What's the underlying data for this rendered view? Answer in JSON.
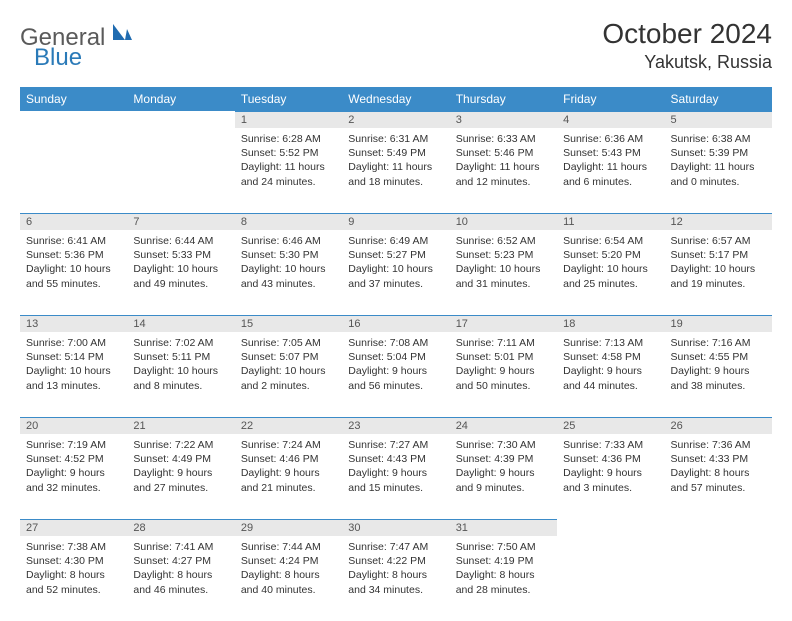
{
  "brand": {
    "text1": "General",
    "text2": "Blue"
  },
  "title": "October 2024",
  "subtitle": "Yakutsk, Russia",
  "colors": {
    "header_bg": "#3b8bc8",
    "header_text": "#ffffff",
    "daynum_bg": "#e8e8e8",
    "daynum_border": "#3b8bc8",
    "body_text": "#333333",
    "logo_gray": "#5a5a5a",
    "logo_blue": "#2a7ab8"
  },
  "typography": {
    "title_fontsize": 28,
    "subtitle_fontsize": 18,
    "dayheader_fontsize": 12,
    "cell_fontsize": 10.5
  },
  "dayHeaders": [
    "Sunday",
    "Monday",
    "Tuesday",
    "Wednesday",
    "Thursday",
    "Friday",
    "Saturday"
  ],
  "weeks": [
    [
      null,
      null,
      {
        "n": "1",
        "sunrise": "Sunrise: 6:28 AM",
        "sunset": "Sunset: 5:52 PM",
        "d1": "Daylight: 11 hours",
        "d2": "and 24 minutes."
      },
      {
        "n": "2",
        "sunrise": "Sunrise: 6:31 AM",
        "sunset": "Sunset: 5:49 PM",
        "d1": "Daylight: 11 hours",
        "d2": "and 18 minutes."
      },
      {
        "n": "3",
        "sunrise": "Sunrise: 6:33 AM",
        "sunset": "Sunset: 5:46 PM",
        "d1": "Daylight: 11 hours",
        "d2": "and 12 minutes."
      },
      {
        "n": "4",
        "sunrise": "Sunrise: 6:36 AM",
        "sunset": "Sunset: 5:43 PM",
        "d1": "Daylight: 11 hours",
        "d2": "and 6 minutes."
      },
      {
        "n": "5",
        "sunrise": "Sunrise: 6:38 AM",
        "sunset": "Sunset: 5:39 PM",
        "d1": "Daylight: 11 hours",
        "d2": "and 0 minutes."
      }
    ],
    [
      {
        "n": "6",
        "sunrise": "Sunrise: 6:41 AM",
        "sunset": "Sunset: 5:36 PM",
        "d1": "Daylight: 10 hours",
        "d2": "and 55 minutes."
      },
      {
        "n": "7",
        "sunrise": "Sunrise: 6:44 AM",
        "sunset": "Sunset: 5:33 PM",
        "d1": "Daylight: 10 hours",
        "d2": "and 49 minutes."
      },
      {
        "n": "8",
        "sunrise": "Sunrise: 6:46 AM",
        "sunset": "Sunset: 5:30 PM",
        "d1": "Daylight: 10 hours",
        "d2": "and 43 minutes."
      },
      {
        "n": "9",
        "sunrise": "Sunrise: 6:49 AM",
        "sunset": "Sunset: 5:27 PM",
        "d1": "Daylight: 10 hours",
        "d2": "and 37 minutes."
      },
      {
        "n": "10",
        "sunrise": "Sunrise: 6:52 AM",
        "sunset": "Sunset: 5:23 PM",
        "d1": "Daylight: 10 hours",
        "d2": "and 31 minutes."
      },
      {
        "n": "11",
        "sunrise": "Sunrise: 6:54 AM",
        "sunset": "Sunset: 5:20 PM",
        "d1": "Daylight: 10 hours",
        "d2": "and 25 minutes."
      },
      {
        "n": "12",
        "sunrise": "Sunrise: 6:57 AM",
        "sunset": "Sunset: 5:17 PM",
        "d1": "Daylight: 10 hours",
        "d2": "and 19 minutes."
      }
    ],
    [
      {
        "n": "13",
        "sunrise": "Sunrise: 7:00 AM",
        "sunset": "Sunset: 5:14 PM",
        "d1": "Daylight: 10 hours",
        "d2": "and 13 minutes."
      },
      {
        "n": "14",
        "sunrise": "Sunrise: 7:02 AM",
        "sunset": "Sunset: 5:11 PM",
        "d1": "Daylight: 10 hours",
        "d2": "and 8 minutes."
      },
      {
        "n": "15",
        "sunrise": "Sunrise: 7:05 AM",
        "sunset": "Sunset: 5:07 PM",
        "d1": "Daylight: 10 hours",
        "d2": "and 2 minutes."
      },
      {
        "n": "16",
        "sunrise": "Sunrise: 7:08 AM",
        "sunset": "Sunset: 5:04 PM",
        "d1": "Daylight: 9 hours",
        "d2": "and 56 minutes."
      },
      {
        "n": "17",
        "sunrise": "Sunrise: 7:11 AM",
        "sunset": "Sunset: 5:01 PM",
        "d1": "Daylight: 9 hours",
        "d2": "and 50 minutes."
      },
      {
        "n": "18",
        "sunrise": "Sunrise: 7:13 AM",
        "sunset": "Sunset: 4:58 PM",
        "d1": "Daylight: 9 hours",
        "d2": "and 44 minutes."
      },
      {
        "n": "19",
        "sunrise": "Sunrise: 7:16 AM",
        "sunset": "Sunset: 4:55 PM",
        "d1": "Daylight: 9 hours",
        "d2": "and 38 minutes."
      }
    ],
    [
      {
        "n": "20",
        "sunrise": "Sunrise: 7:19 AM",
        "sunset": "Sunset: 4:52 PM",
        "d1": "Daylight: 9 hours",
        "d2": "and 32 minutes."
      },
      {
        "n": "21",
        "sunrise": "Sunrise: 7:22 AM",
        "sunset": "Sunset: 4:49 PM",
        "d1": "Daylight: 9 hours",
        "d2": "and 27 minutes."
      },
      {
        "n": "22",
        "sunrise": "Sunrise: 7:24 AM",
        "sunset": "Sunset: 4:46 PM",
        "d1": "Daylight: 9 hours",
        "d2": "and 21 minutes."
      },
      {
        "n": "23",
        "sunrise": "Sunrise: 7:27 AM",
        "sunset": "Sunset: 4:43 PM",
        "d1": "Daylight: 9 hours",
        "d2": "and 15 minutes."
      },
      {
        "n": "24",
        "sunrise": "Sunrise: 7:30 AM",
        "sunset": "Sunset: 4:39 PM",
        "d1": "Daylight: 9 hours",
        "d2": "and 9 minutes."
      },
      {
        "n": "25",
        "sunrise": "Sunrise: 7:33 AM",
        "sunset": "Sunset: 4:36 PM",
        "d1": "Daylight: 9 hours",
        "d2": "and 3 minutes."
      },
      {
        "n": "26",
        "sunrise": "Sunrise: 7:36 AM",
        "sunset": "Sunset: 4:33 PM",
        "d1": "Daylight: 8 hours",
        "d2": "and 57 minutes."
      }
    ],
    [
      {
        "n": "27",
        "sunrise": "Sunrise: 7:38 AM",
        "sunset": "Sunset: 4:30 PM",
        "d1": "Daylight: 8 hours",
        "d2": "and 52 minutes."
      },
      {
        "n": "28",
        "sunrise": "Sunrise: 7:41 AM",
        "sunset": "Sunset: 4:27 PM",
        "d1": "Daylight: 8 hours",
        "d2": "and 46 minutes."
      },
      {
        "n": "29",
        "sunrise": "Sunrise: 7:44 AM",
        "sunset": "Sunset: 4:24 PM",
        "d1": "Daylight: 8 hours",
        "d2": "and 40 minutes."
      },
      {
        "n": "30",
        "sunrise": "Sunrise: 7:47 AM",
        "sunset": "Sunset: 4:22 PM",
        "d1": "Daylight: 8 hours",
        "d2": "and 34 minutes."
      },
      {
        "n": "31",
        "sunrise": "Sunrise: 7:50 AM",
        "sunset": "Sunset: 4:19 PM",
        "d1": "Daylight: 8 hours",
        "d2": "and 28 minutes."
      },
      null,
      null
    ]
  ]
}
